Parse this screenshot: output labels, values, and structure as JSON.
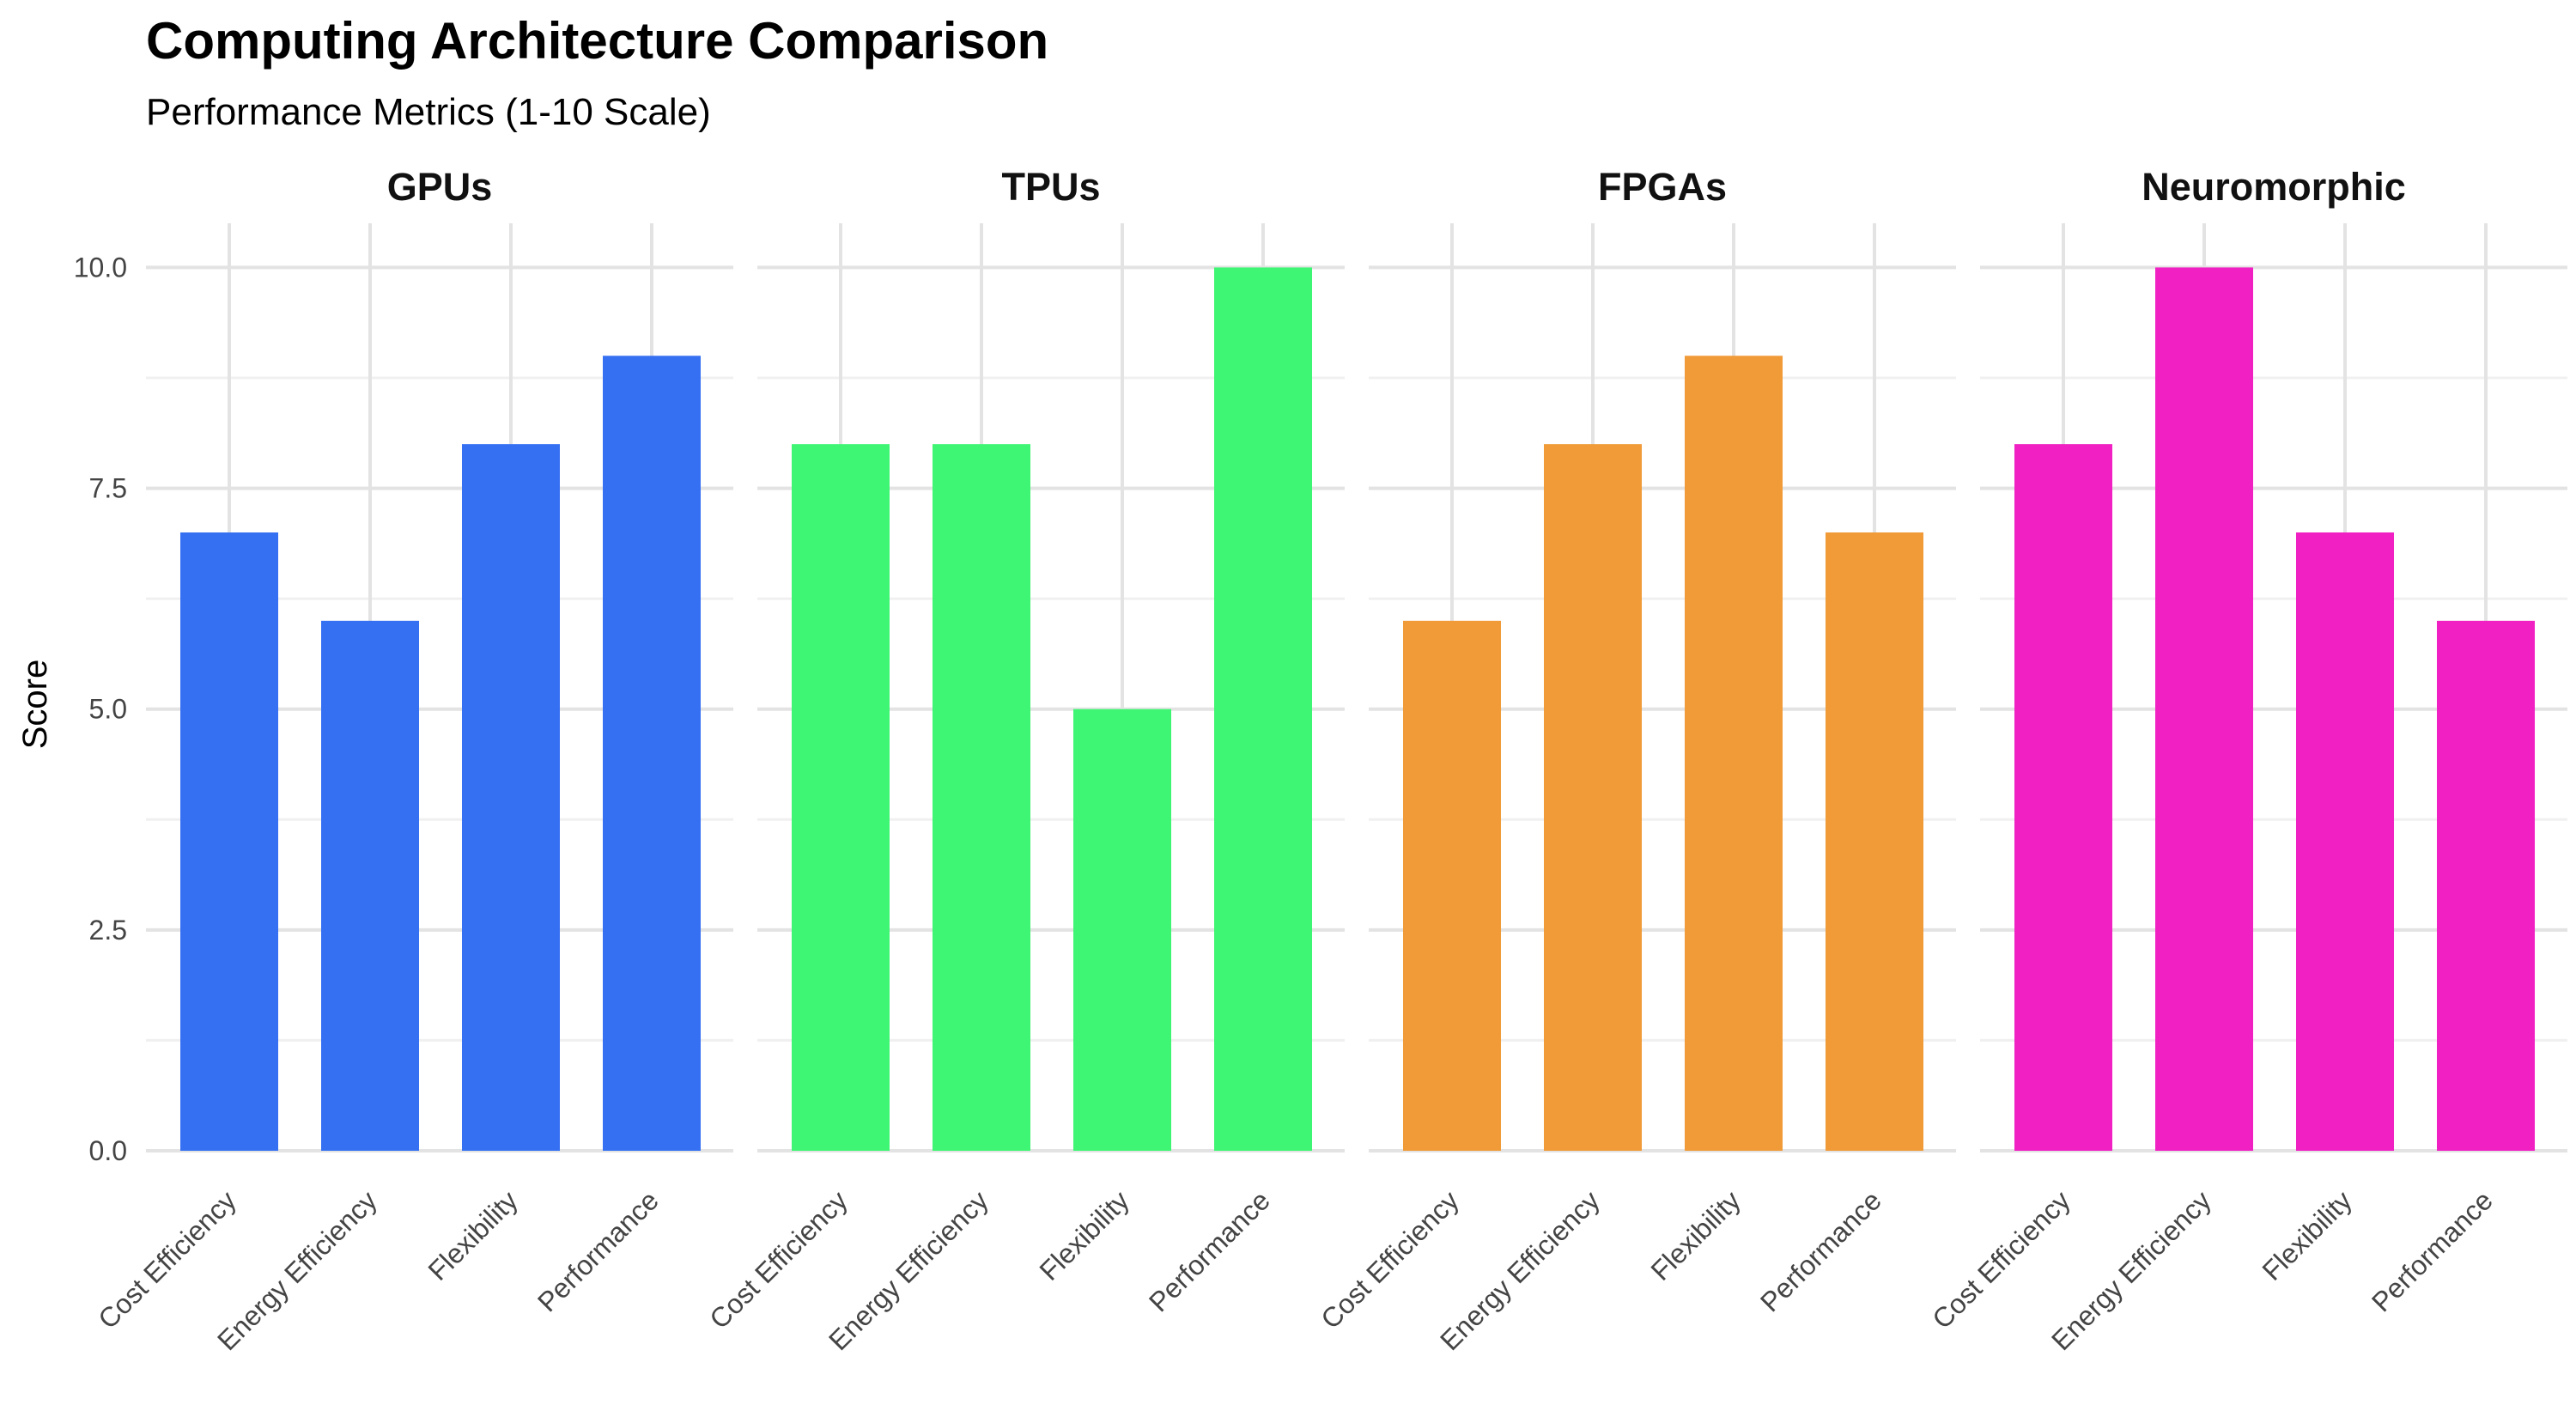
{
  "chart_data": {
    "type": "bar",
    "title": "Computing Architecture Comparison",
    "subtitle": "Performance Metrics (1-10 Scale)",
    "ylabel": "Score",
    "xlabel": "",
    "ylim": [
      0,
      10.5
    ],
    "yticks": [
      0.0,
      2.5,
      5.0,
      7.5,
      10.0
    ],
    "ytick_labels": [
      "0.0",
      "2.5",
      "5.0",
      "7.5",
      "10.0"
    ],
    "grid": true,
    "legend": "none",
    "categories": [
      "Cost Efficiency",
      "Energy Efficiency",
      "Flexibility",
      "Performance"
    ],
    "facets": [
      {
        "name": "GPUs",
        "color": "#3670F2",
        "values": [
          7,
          6,
          8,
          9
        ]
      },
      {
        "name": "TPUs",
        "color": "#3FF674",
        "values": [
          8,
          8,
          5,
          10
        ]
      },
      {
        "name": "FPGAs",
        "color": "#F09A38",
        "values": [
          6,
          8,
          9,
          7
        ]
      },
      {
        "name": "Neuromorphic",
        "color": "#F020C2",
        "values": [
          8,
          10,
          7,
          6
        ]
      }
    ]
  }
}
